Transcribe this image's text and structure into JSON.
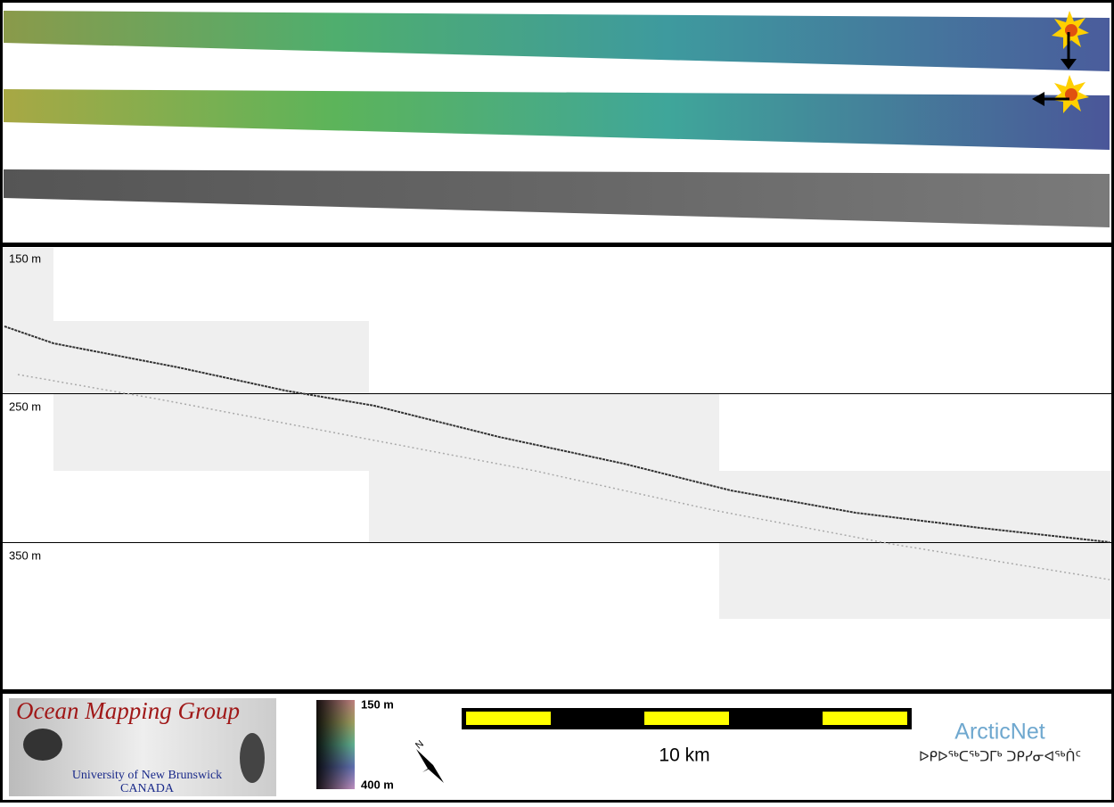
{
  "profile": {
    "depth_labels": [
      "150 m",
      "250 m",
      "350 m"
    ]
  },
  "logo": {
    "title": "Ocean Mapping Group",
    "university": "University of New Brunswick",
    "country": "CANADA"
  },
  "color_scale": {
    "top_label": "150 m",
    "bottom_label": "400 m"
  },
  "north_arrow": {
    "label": "N"
  },
  "scale_bar": {
    "label": "10 km"
  },
  "partner": {
    "name": "ArcticNet",
    "name_inuktitut": "ᐅᑭᐅᖅᑕᖅᑐᒥᒃ ᑐᑭᓯᓂᐊᖅᑏᑦ"
  }
}
